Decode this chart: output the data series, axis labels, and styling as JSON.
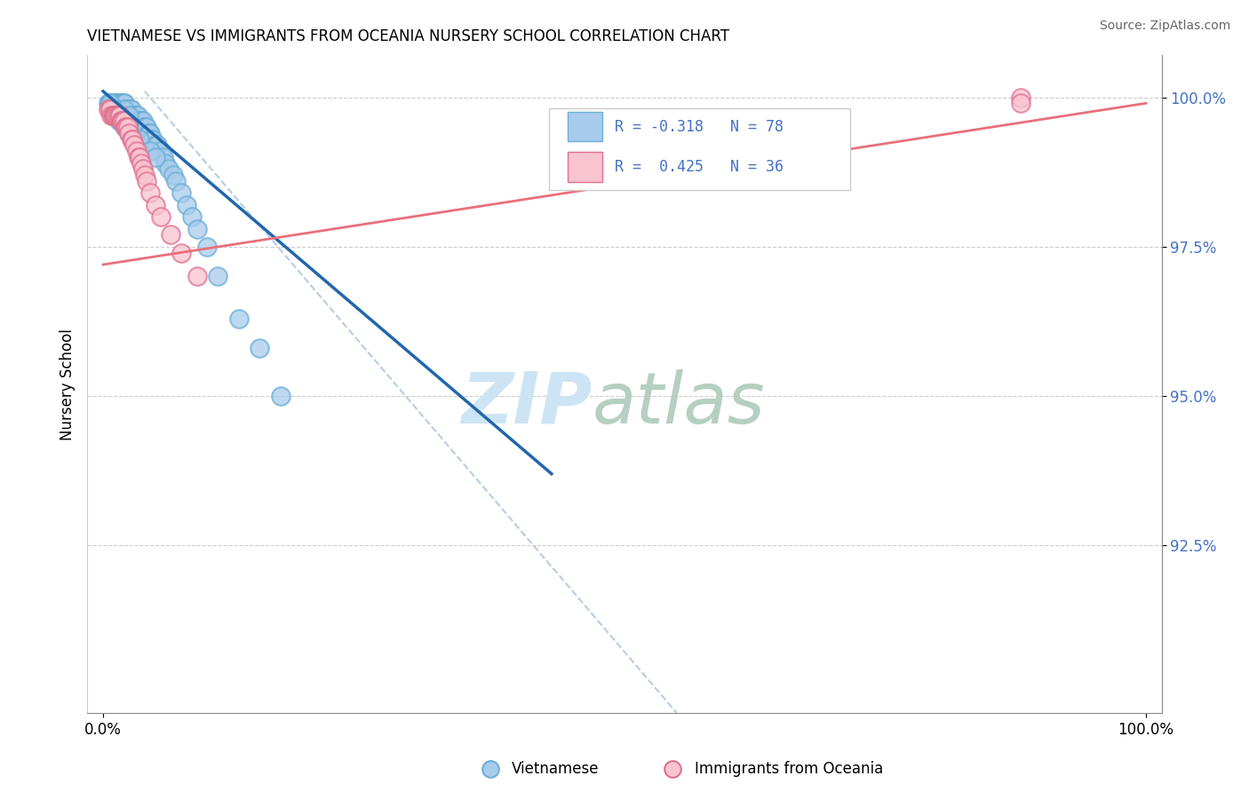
{
  "title": "VIETNAMESE VS IMMIGRANTS FROM OCEANIA NURSERY SCHOOL CORRELATION CHART",
  "source": "Source: ZipAtlas.com",
  "ylabel": "Nursery School",
  "blue_scatter_color_face": "#a8ccec",
  "blue_scatter_color_edge": "#6baed6",
  "pink_scatter_color_face": "#f9c4d0",
  "pink_scatter_color_edge": "#e07090",
  "blue_line_color": "#2166ac",
  "pink_line_color": "#e8707a",
  "dash_line_color": "#aec8e0",
  "grid_color": "#cccccc",
  "ytick_color": "#4472c4",
  "ymin": 0.897,
  "ymax": 1.007,
  "xmin": -0.015,
  "xmax": 1.015,
  "viet_x": [
    0.005,
    0.006,
    0.007,
    0.008,
    0.009,
    0.01,
    0.01,
    0.011,
    0.012,
    0.013,
    0.014,
    0.015,
    0.015,
    0.016,
    0.017,
    0.018,
    0.019,
    0.02,
    0.02,
    0.021,
    0.022,
    0.022,
    0.023,
    0.024,
    0.025,
    0.025,
    0.026,
    0.027,
    0.028,
    0.029,
    0.03,
    0.03,
    0.031,
    0.032,
    0.033,
    0.034,
    0.035,
    0.036,
    0.037,
    0.038,
    0.039,
    0.04,
    0.041,
    0.042,
    0.043,
    0.044,
    0.045,
    0.046,
    0.048,
    0.05,
    0.052,
    0.055,
    0.058,
    0.06,
    0.063,
    0.067,
    0.07,
    0.075,
    0.08,
    0.085,
    0.09,
    0.1,
    0.11,
    0.13,
    0.15,
    0.17,
    0.02,
    0.025,
    0.007,
    0.008,
    0.009,
    0.01,
    0.015,
    0.02,
    0.025,
    0.035,
    0.045,
    0.05
  ],
  "viet_y": [
    0.999,
    0.999,
    0.999,
    0.999,
    0.999,
    0.999,
    0.999,
    0.999,
    0.999,
    0.999,
    0.999,
    0.999,
    0.999,
    0.999,
    0.999,
    0.999,
    0.999,
    0.999,
    0.999,
    0.998,
    0.998,
    0.998,
    0.998,
    0.998,
    0.998,
    0.998,
    0.998,
    0.998,
    0.997,
    0.997,
    0.997,
    0.997,
    0.997,
    0.997,
    0.997,
    0.996,
    0.996,
    0.996,
    0.996,
    0.996,
    0.995,
    0.995,
    0.995,
    0.995,
    0.994,
    0.994,
    0.994,
    0.993,
    0.993,
    0.992,
    0.992,
    0.991,
    0.99,
    0.989,
    0.988,
    0.987,
    0.986,
    0.984,
    0.982,
    0.98,
    0.978,
    0.975,
    0.97,
    0.963,
    0.958,
    0.95,
    0.998,
    0.997,
    0.999,
    0.998,
    0.998,
    0.997,
    0.996,
    0.995,
    0.994,
    0.993,
    0.991,
    0.99
  ],
  "oce_x": [
    0.005,
    0.007,
    0.008,
    0.009,
    0.01,
    0.011,
    0.012,
    0.014,
    0.015,
    0.016,
    0.017,
    0.018,
    0.019,
    0.02,
    0.021,
    0.022,
    0.024,
    0.025,
    0.027,
    0.028,
    0.03,
    0.032,
    0.034,
    0.035,
    0.037,
    0.038,
    0.04,
    0.042,
    0.045,
    0.05,
    0.055,
    0.065,
    0.075,
    0.09,
    0.88,
    0.88
  ],
  "oce_y": [
    0.998,
    0.998,
    0.997,
    0.997,
    0.997,
    0.997,
    0.997,
    0.997,
    0.997,
    0.997,
    0.996,
    0.996,
    0.996,
    0.996,
    0.995,
    0.995,
    0.995,
    0.994,
    0.993,
    0.993,
    0.992,
    0.991,
    0.99,
    0.99,
    0.989,
    0.988,
    0.987,
    0.986,
    0.984,
    0.982,
    0.98,
    0.977,
    0.974,
    0.97,
    1.0,
    0.999
  ],
  "viet_line_x0": 0.0,
  "viet_line_x1": 0.43,
  "viet_line_y0": 1.001,
  "viet_line_y1": 0.937,
  "oce_line_x0": 0.0,
  "oce_line_x1": 1.0,
  "oce_line_y0": 0.972,
  "oce_line_y1": 0.999,
  "dash_line_x0": 0.04,
  "dash_line_x1": 0.55,
  "dash_line_y0": 1.001,
  "dash_line_y1": 0.897
}
